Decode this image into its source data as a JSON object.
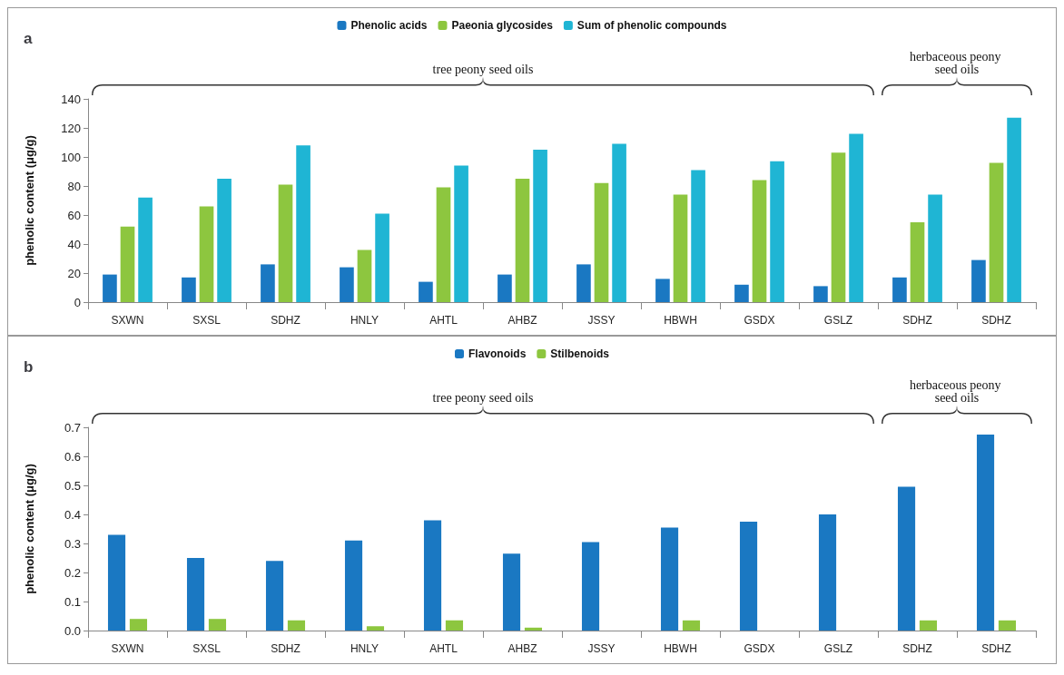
{
  "chart_data": [
    {
      "type": "bar",
      "title": "a",
      "ylabel": "phenolic content (μg/g)",
      "categories": [
        "SXWN",
        "SXSL",
        "SDHZ",
        "HNLY",
        "AHTL",
        "AHBZ",
        "JSSY",
        "HBWH",
        "GSDX",
        "GSLZ",
        "SDHZ",
        "SDHZ"
      ],
      "series": [
        {
          "name": "Phenolic acids",
          "color": "#1a78c2",
          "values": [
            19,
            17,
            26,
            24,
            14,
            19,
            26,
            16,
            12,
            11,
            17,
            29
          ]
        },
        {
          "name": "Paeonia glycosides",
          "color": "#8dc63f",
          "values": [
            52,
            66,
            81,
            36,
            79,
            85,
            82,
            74,
            84,
            103,
            55,
            96
          ]
        },
        {
          "name": "Sum of phenolic compounds",
          "color": "#1fb5d4",
          "values": [
            72,
            85,
            108,
            61,
            94,
            105,
            109,
            91,
            97,
            116,
            74,
            127
          ]
        }
      ],
      "ylim": [
        0,
        140
      ],
      "yticks": [
        0,
        20,
        40,
        60,
        80,
        100,
        120,
        140
      ],
      "grid": false,
      "legend": "top",
      "annotations": [
        "tree peony seed oils",
        "herbaceous peony seed oils"
      ]
    },
    {
      "type": "bar",
      "title": "b",
      "ylabel": "phenolic content (μg/g)",
      "categories": [
        "SXWN",
        "SXSL",
        "SDHZ",
        "HNLY",
        "AHTL",
        "AHBZ",
        "JSSY",
        "HBWH",
        "GSDX",
        "GSLZ",
        "SDHZ",
        "SDHZ"
      ],
      "series": [
        {
          "name": "Flavonoids",
          "color": "#1a78c2",
          "values": [
            0.33,
            0.25,
            0.24,
            0.31,
            0.38,
            0.265,
            0.305,
            0.355,
            0.375,
            0.4,
            0.495,
            0.675
          ]
        },
        {
          "name": "Stilbenoids",
          "color": "#8dc63f",
          "values": [
            0.04,
            0.04,
            0.035,
            0.015,
            0.035,
            0.01,
            0,
            0.035,
            0,
            0,
            0.035,
            0.035
          ]
        }
      ],
      "ylim": [
        0,
        0.7
      ],
      "yticks": [
        {
          "value": 0,
          "label": "0.0"
        },
        0.1,
        0.2,
        0.3,
        0.4,
        0.5,
        0.6,
        0.7
      ],
      "grid": false,
      "legend": "top",
      "annotations": [
        "tree peony seed oils",
        "herbaceous peony seed oils"
      ]
    }
  ]
}
